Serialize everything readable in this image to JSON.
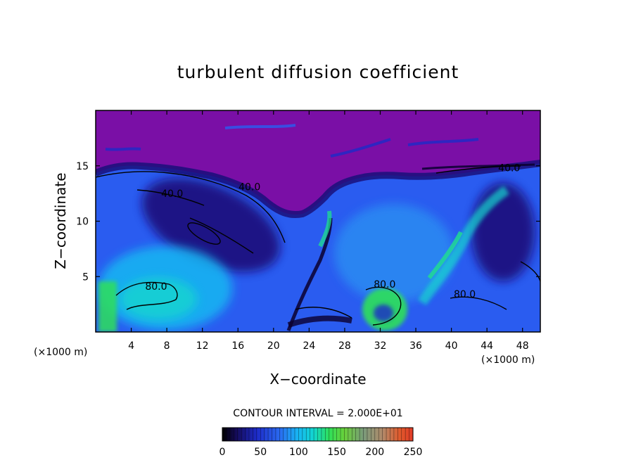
{
  "chart_data": {
    "type": "heatmap",
    "title": "turbulent diffusion coefficient",
    "xlabel": "X−coordinate",
    "ylabel": "Z−coordinate",
    "x_unit_left": "(×1000 m)",
    "x_unit_right": "(×1000 m)",
    "xlim": [
      0,
      50
    ],
    "ylim": [
      0,
      20
    ],
    "x_ticks": [
      4,
      8,
      12,
      16,
      20,
      24,
      28,
      32,
      36,
      40,
      44,
      48
    ],
    "y_ticks": [
      5,
      10,
      15
    ],
    "contour_interval_text": "CONTOUR INTERVAL = 2.000E+01",
    "colorbar": {
      "min": 0,
      "max": 250,
      "ticks": [
        0,
        50,
        100,
        150,
        200,
        250
      ]
    },
    "contour_labels": [
      {
        "text": "40.0",
        "x": 8.6,
        "z": 12.2
      },
      {
        "text": "40.0",
        "x": 17.3,
        "z": 12.8
      },
      {
        "text": "80.0",
        "x": 6.8,
        "z": 3.8
      },
      {
        "text": "80.0",
        "x": 32.5,
        "z": 4.0
      },
      {
        "text": "80.0",
        "x": 41.5,
        "z": 3.1
      },
      {
        "text": "40.0",
        "x": 46.5,
        "z": 14.5
      }
    ],
    "colormap": [
      "#000000",
      "#0b0030",
      "#1a0f7a",
      "#1d2bc8",
      "#2a5cf0",
      "#2b8ef2",
      "#17b8f2",
      "#12d6cf",
      "#1fe08f",
      "#2ee05a",
      "#69d03a",
      "#b0a632",
      "#e06c2c",
      "#e03b27"
    ],
    "background_color": "#7a0fa6"
  }
}
